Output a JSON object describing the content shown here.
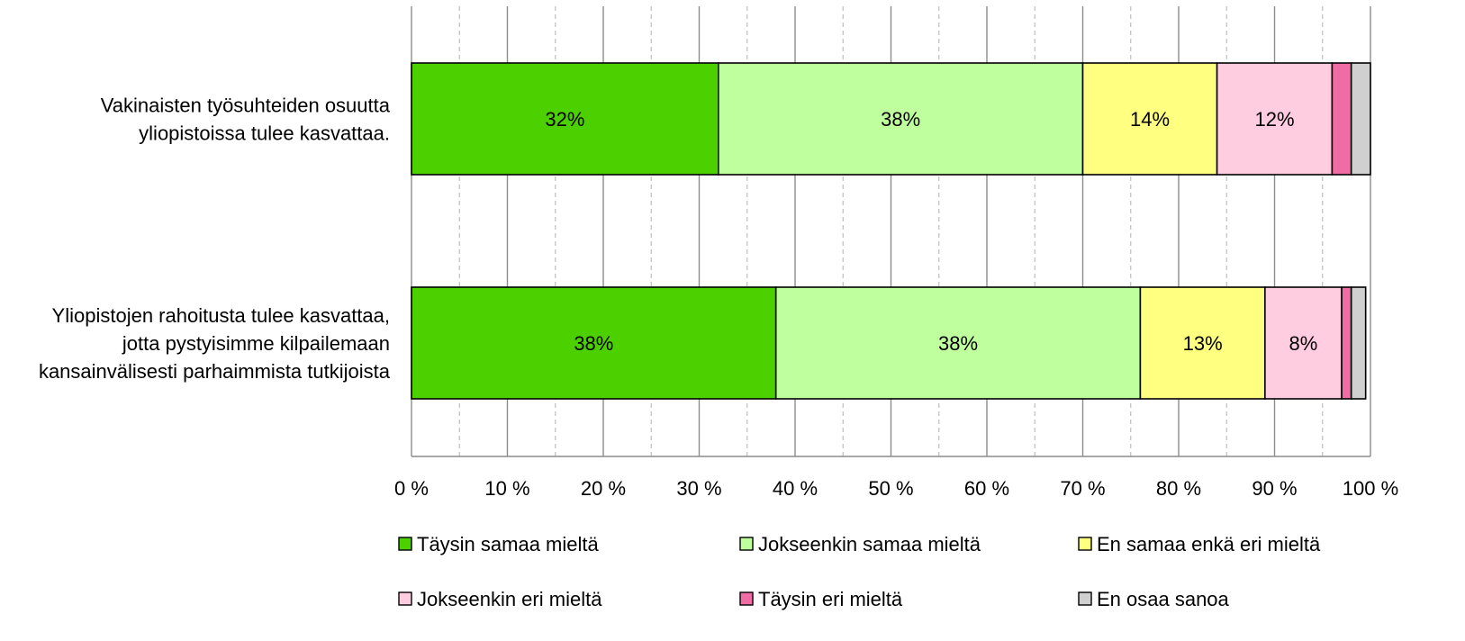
{
  "chart_data": {
    "type": "bar",
    "orientation": "horizontal",
    "stacked": true,
    "percent_stacked": true,
    "xlim": [
      0,
      100
    ],
    "x_ticks": [
      "0 %",
      "10 %",
      "20 %",
      "30 %",
      "40 %",
      "50 %",
      "60 %",
      "70 %",
      "80 %",
      "90 %",
      "100 %"
    ],
    "grid": true,
    "minor_grid": "dashed",
    "legend_position": "bottom",
    "categories": [
      [
        "Vakinaisten työsuhteiden osuutta",
        "yliopistoissa tulee kasvattaa."
      ],
      [
        "Yliopistojen rahoitusta tulee kasvattaa,",
        "jotta pystyisimme kilpailemaan",
        "kansainvälisesti parhaimmista tutkijoista"
      ]
    ],
    "series": [
      {
        "name": "Täysin samaa mieltä",
        "color": "#4cd000",
        "values": [
          32,
          38
        ],
        "labels": [
          "32%",
          "38%"
        ]
      },
      {
        "name": "Jokseenkin samaa mieltä",
        "color": "#c0ff9e",
        "values": [
          38,
          38
        ],
        "labels": [
          "38%",
          "38%"
        ]
      },
      {
        "name": "En samaa enkä eri mieltä",
        "color": "#ffff80",
        "values": [
          14,
          13
        ],
        "labels": [
          "14%",
          "13%"
        ]
      },
      {
        "name": "Jokseenkin eri mieltä",
        "color": "#ffcce0",
        "values": [
          12,
          8
        ],
        "labels": [
          "12%",
          "8%"
        ]
      },
      {
        "name": "Täysin eri mieltä",
        "color": "#f06ca4",
        "values": [
          2,
          1
        ],
        "labels": [
          "",
          ""
        ]
      },
      {
        "name": "En osaa sanoa",
        "color": "#d0d0d0",
        "values": [
          2,
          1.5
        ],
        "labels": [
          "",
          ""
        ]
      }
    ]
  }
}
